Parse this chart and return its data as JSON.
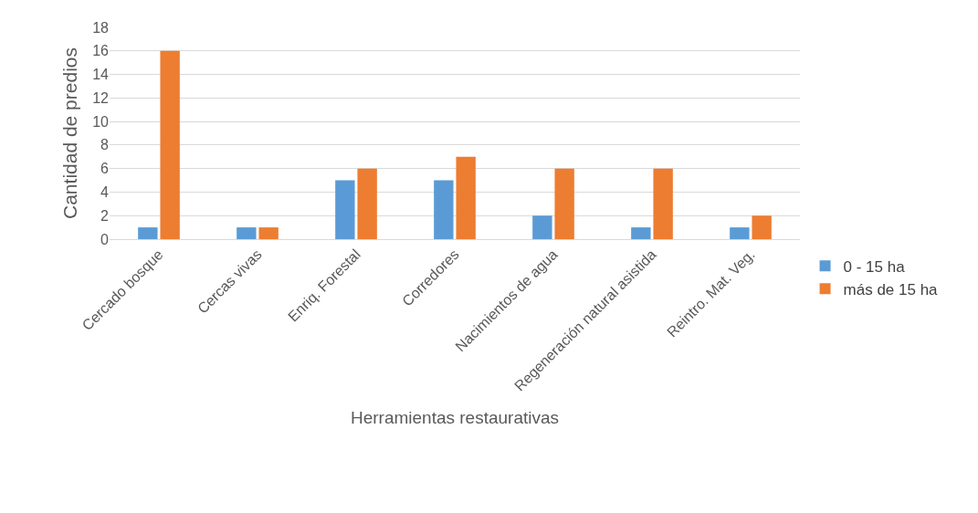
{
  "chart_data": {
    "type": "bar",
    "xlabel": "Herramientas restaurativas",
    "ylabel": "Cantidad de predios",
    "categories": [
      "Cercado bosque",
      "Cercas vivas",
      "Enriq. Forestal",
      "Corredores",
      "Nacimientos de agua",
      "Regeneración natural asistida",
      "Reintro. Mat. Veg."
    ],
    "series": [
      {
        "name": "0 - 15 ha",
        "color": "#5b9bd5",
        "values": [
          1,
          1,
          5,
          5,
          2,
          1,
          1
        ]
      },
      {
        "name": "más de 15 ha",
        "color": "#ed7d31",
        "values": [
          16,
          1,
          6,
          7,
          6,
          6,
          2
        ]
      }
    ],
    "ylim": [
      0,
      18
    ],
    "yticks": [
      0,
      2,
      4,
      6,
      8,
      10,
      12,
      14,
      16,
      18
    ],
    "grid": "y",
    "legend": "right"
  }
}
